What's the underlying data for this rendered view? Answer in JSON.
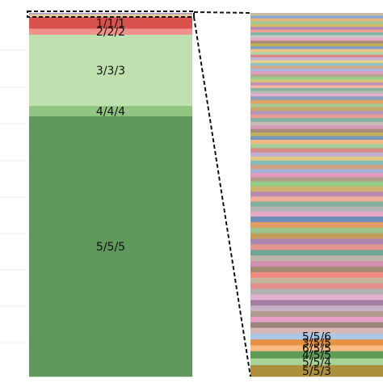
{
  "chart_data": {
    "type": "bar",
    "ylim": [
      0,
      1
    ],
    "grid": true,
    "left_bar": {
      "segments": [
        {
          "label": "",
          "value": 0.004,
          "color": "#b2a3c4"
        },
        {
          "label": "",
          "value": 0.004,
          "color": "#e5d39a"
        },
        {
          "label": "",
          "value": 0.003,
          "color": "#f6c09e"
        },
        {
          "label": "1/1/1",
          "value": 0.03,
          "color": "#d8514c"
        },
        {
          "label": "2/2/2",
          "value": 0.016,
          "color": "#f1928a"
        },
        {
          "label": "3/3/3",
          "value": 0.186,
          "color": "#bfe0af"
        },
        {
          "label": "4/4/4",
          "value": 0.027,
          "color": "#90c682"
        },
        {
          "label": "5/5/5",
          "value": 0.68,
          "color": "#5e995b"
        }
      ]
    },
    "right_bar": {
      "segments": [
        {
          "label": "",
          "value": 1.0,
          "color": "#c9b8a0"
        },
        {
          "label": "",
          "value": 1.0,
          "color": "#89a9cf"
        },
        {
          "label": "",
          "value": 1.0,
          "color": "#e8b47a"
        },
        {
          "label": "",
          "value": 1.0,
          "color": "#9fc99a"
        },
        {
          "label": "",
          "value": 1.0,
          "color": "#d4b86a"
        },
        {
          "label": "",
          "value": 1.0,
          "color": "#b08ab6"
        },
        {
          "label": "",
          "value": 1.0,
          "color": "#f0a09a"
        },
        {
          "label": "",
          "value": 1.0,
          "color": "#79b7a6"
        },
        {
          "label": "",
          "value": 1.0,
          "color": "#c7c7c7"
        },
        {
          "label": "",
          "value": 1.0,
          "color": "#e6a8c6"
        },
        {
          "label": "",
          "value": 1.0,
          "color": "#a98b74"
        },
        {
          "label": "",
          "value": 1.0,
          "color": "#c4b04e"
        },
        {
          "label": "",
          "value": 1.0,
          "color": "#7d9fc8"
        },
        {
          "label": "",
          "value": 1.0,
          "color": "#f2c28a"
        },
        {
          "label": "",
          "value": 1.0,
          "color": "#b3d3a5"
        },
        {
          "label": "",
          "value": 1.0,
          "color": "#d98a8a"
        },
        {
          "label": "",
          "value": 1.0,
          "color": "#c3b3d6"
        },
        {
          "label": "",
          "value": 1.0,
          "color": "#e7d08b"
        },
        {
          "label": "",
          "value": 1.0,
          "color": "#8ec1c1"
        },
        {
          "label": "",
          "value": 1.0,
          "color": "#d7a386"
        },
        {
          "label": "",
          "value": 1.0,
          "color": "#a7b8d8"
        },
        {
          "label": "",
          "value": 1.0,
          "color": "#e49dc0"
        },
        {
          "label": "",
          "value": 1.0,
          "color": "#b5a48e"
        },
        {
          "label": "",
          "value": 1.0,
          "color": "#9ad08c"
        },
        {
          "label": "",
          "value": 1.0,
          "color": "#d6c17a"
        },
        {
          "label": "",
          "value": 1.0,
          "color": "#c08fb1"
        },
        {
          "label": "",
          "value": 1.0,
          "color": "#f3b5a3"
        },
        {
          "label": "",
          "value": 1.0,
          "color": "#86b6a1"
        },
        {
          "label": "",
          "value": 1.0,
          "color": "#b9b9b9"
        },
        {
          "label": "",
          "value": 1.0,
          "color": "#e7b1cd"
        },
        {
          "label": "",
          "value": 1.3,
          "color": "#8c9fbe"
        },
        {
          "label": "",
          "value": 1.3,
          "color": "#e0a466"
        },
        {
          "label": "",
          "value": 1.3,
          "color": "#a8c792"
        },
        {
          "label": "",
          "value": 1.3,
          "color": "#c9a96b"
        },
        {
          "label": "",
          "value": 1.3,
          "color": "#b493b9"
        },
        {
          "label": "",
          "value": 1.3,
          "color": "#e89e93"
        },
        {
          "label": "",
          "value": 1.3,
          "color": "#7fb0a0"
        },
        {
          "label": "",
          "value": 1.3,
          "color": "#c4bcb2"
        },
        {
          "label": "",
          "value": 1.3,
          "color": "#d69ab9"
        },
        {
          "label": "",
          "value": 1.3,
          "color": "#a68b7b"
        },
        {
          "label": "",
          "value": 1.3,
          "color": "#bfb060"
        },
        {
          "label": "",
          "value": 1.3,
          "color": "#7898c0"
        },
        {
          "label": "",
          "value": 1.5,
          "color": "#efb982"
        },
        {
          "label": "",
          "value": 1.5,
          "color": "#a6cf99"
        },
        {
          "label": "",
          "value": 1.5,
          "color": "#d88b87"
        },
        {
          "label": "",
          "value": 1.5,
          "color": "#c1aed3"
        },
        {
          "label": "",
          "value": 1.5,
          "color": "#e2c985"
        },
        {
          "label": "",
          "value": 1.5,
          "color": "#86bcbd"
        },
        {
          "label": "",
          "value": 1.5,
          "color": "#d49e83"
        },
        {
          "label": "",
          "value": 1.5,
          "color": "#a3b3d4"
        },
        {
          "label": "",
          "value": 1.5,
          "color": "#e39abc"
        },
        {
          "label": "",
          "value": 1.5,
          "color": "#b09e88"
        },
        {
          "label": "",
          "value": 1.8,
          "color": "#94c986"
        },
        {
          "label": "",
          "value": 1.8,
          "color": "#cfb46d"
        },
        {
          "label": "",
          "value": 1.8,
          "color": "#ba8aad"
        },
        {
          "label": "",
          "value": 1.8,
          "color": "#f1ac9a"
        },
        {
          "label": "",
          "value": 1.8,
          "color": "#7eae9c"
        },
        {
          "label": "",
          "value": 1.8,
          "color": "#b3b3b3"
        },
        {
          "label": "",
          "value": 1.8,
          "color": "#e5a9c8"
        },
        {
          "label": "",
          "value": 2.0,
          "color": "#6f8fba"
        },
        {
          "label": "",
          "value": 2.0,
          "color": "#e29a5e"
        },
        {
          "label": "",
          "value": 2.0,
          "color": "#9cc48c"
        },
        {
          "label": "",
          "value": 2.0,
          "color": "#c49c5c"
        },
        {
          "label": "",
          "value": 2.0,
          "color": "#aa86b0"
        },
        {
          "label": "",
          "value": 2.0,
          "color": "#e4968c"
        },
        {
          "label": "",
          "value": 2.0,
          "color": "#6fa595"
        },
        {
          "label": "",
          "value": 2.0,
          "color": "#bdb3a8"
        },
        {
          "label": "",
          "value": 2.0,
          "color": "#cf8fb0"
        },
        {
          "label": "",
          "value": 2.0,
          "color": "#a68a74"
        },
        {
          "label": "",
          "value": 2.0,
          "color": "#f08a80"
        },
        {
          "label": "",
          "value": 2.0,
          "color": "#c5b59a"
        },
        {
          "label": "",
          "value": 2.0,
          "color": "#e48f8f"
        },
        {
          "label": "",
          "value": 2.0,
          "color": "#b0b0b0"
        },
        {
          "label": "",
          "value": 2.0,
          "color": "#e2b0ce"
        },
        {
          "label": "",
          "value": 2.0,
          "color": "#a37ea3"
        },
        {
          "label": "",
          "value": 2.0,
          "color": "#c8b0c8"
        },
        {
          "label": "",
          "value": 2.0,
          "color": "#b19a8f"
        },
        {
          "label": "",
          "value": 2.0,
          "color": "#e7a0c3"
        },
        {
          "label": "",
          "value": 2.0,
          "color": "#998577"
        },
        {
          "label": "",
          "value": 2.0,
          "color": "#d8b6b6"
        },
        {
          "label": "5/5/6",
          "value": 2.2,
          "color": "#a8c8e6"
        },
        {
          "label": "3/5/5",
          "value": 2.1,
          "color": "#e5913f"
        },
        {
          "label": "6/5/5",
          "value": 2.1,
          "color": "#f7bb82"
        },
        {
          "label": "4/5/5",
          "value": 2.6,
          "color": "#5e9a58"
        },
        {
          "label": "5/5/4",
          "value": 2.4,
          "color": "#a7d399"
        },
        {
          "label": "5/5/3",
          "value": 4.1,
          "color": "#ae8f3c"
        }
      ]
    }
  }
}
